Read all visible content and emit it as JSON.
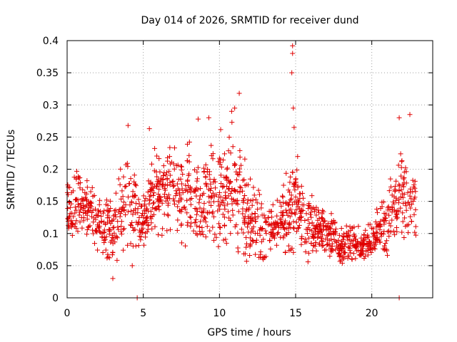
{
  "chart_data": {
    "type": "scatter",
    "title": "Day 014 of 2026, SRMTID for receiver dund",
    "xlabel": "GPS time / hours",
    "ylabel": "SRMTID / TECUs",
    "xlim": [
      0,
      24
    ],
    "ylim": [
      0,
      0.4
    ],
    "grid": true,
    "legend": "none",
    "marker": "plus",
    "color": "#e00000",
    "x_ticks": [
      0,
      5,
      10,
      15,
      20
    ],
    "x_tick_labels": [
      "0",
      "5",
      "10",
      "15",
      "20"
    ],
    "y_ticks": [
      0,
      0.05,
      0.1,
      0.15,
      0.2,
      0.25,
      0.3,
      0.35,
      0.4
    ],
    "y_tick_labels": [
      "0",
      "0.05",
      "0.1",
      "0.15",
      "0.2",
      "0.25",
      "0.3",
      "0.35",
      "0.4"
    ],
    "envelope": [
      {
        "x": 0.0,
        "lo": 0.085,
        "hi": 0.19
      },
      {
        "x": 1.0,
        "lo": 0.07,
        "hi": 0.24
      },
      {
        "x": 2.0,
        "lo": 0.075,
        "hi": 0.18
      },
      {
        "x": 3.0,
        "lo": 0.035,
        "hi": 0.2
      },
      {
        "x": 4.0,
        "lo": 0.05,
        "hi": 0.265
      },
      {
        "x": 5.0,
        "lo": 0.07,
        "hi": 0.19
      },
      {
        "x": 5.5,
        "lo": 0.085,
        "hi": 0.26
      },
      {
        "x": 7.0,
        "lo": 0.09,
        "hi": 0.26
      },
      {
        "x": 8.0,
        "lo": 0.08,
        "hi": 0.275
      },
      {
        "x": 9.0,
        "lo": 0.07,
        "hi": 0.26
      },
      {
        "x": 10.0,
        "lo": 0.07,
        "hi": 0.3
      },
      {
        "x": 11.0,
        "lo": 0.065,
        "hi": 0.315
      },
      {
        "x": 12.0,
        "lo": 0.045,
        "hi": 0.23
      },
      {
        "x": 13.0,
        "lo": 0.045,
        "hi": 0.17
      },
      {
        "x": 14.0,
        "lo": 0.07,
        "hi": 0.19
      },
      {
        "x": 15.0,
        "lo": 0.06,
        "hi": 0.27
      },
      {
        "x": 16.0,
        "lo": 0.045,
        "hi": 0.18
      },
      {
        "x": 17.0,
        "lo": 0.055,
        "hi": 0.16
      },
      {
        "x": 18.0,
        "lo": 0.045,
        "hi": 0.14
      },
      {
        "x": 19.0,
        "lo": 0.045,
        "hi": 0.13
      },
      {
        "x": 20.0,
        "lo": 0.05,
        "hi": 0.14
      },
      {
        "x": 21.0,
        "lo": 0.065,
        "hi": 0.2
      },
      {
        "x": 22.0,
        "lo": 0.08,
        "hi": 0.28
      },
      {
        "x": 22.9,
        "lo": 0.09,
        "hi": 0.21
      }
    ],
    "outliers": [
      {
        "x": 14.8,
        "y": 0.392
      },
      {
        "x": 14.8,
        "y": 0.38
      },
      {
        "x": 14.75,
        "y": 0.35
      },
      {
        "x": 14.85,
        "y": 0.295
      },
      {
        "x": 14.9,
        "y": 0.265
      },
      {
        "x": 11.3,
        "y": 0.318
      },
      {
        "x": 11.0,
        "y": 0.295
      },
      {
        "x": 10.8,
        "y": 0.29
      },
      {
        "x": 22.5,
        "y": 0.285
      },
      {
        "x": 21.8,
        "y": 0.28
      },
      {
        "x": 4.0,
        "y": 0.268
      },
      {
        "x": 5.4,
        "y": 0.263
      },
      {
        "x": 8.6,
        "y": 0.278
      },
      {
        "x": 9.3,
        "y": 0.28
      },
      {
        "x": 3.0,
        "y": 0.03
      },
      {
        "x": 4.6,
        "y": 0.0
      },
      {
        "x": 21.8,
        "y": 0.0
      }
    ],
    "approx_point_count": 1500
  }
}
